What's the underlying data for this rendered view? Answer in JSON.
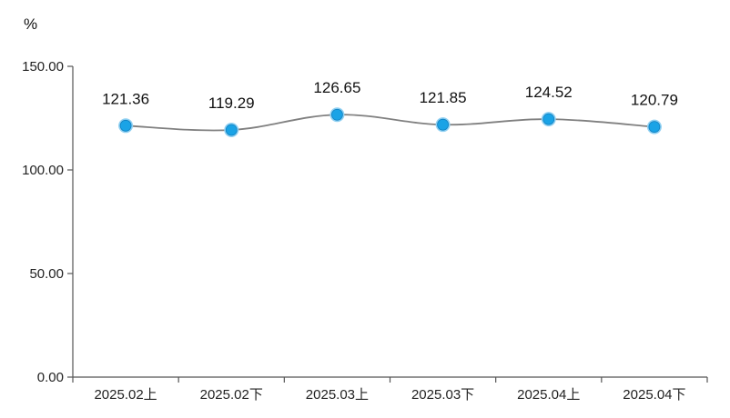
{
  "chart_data": {
    "type": "line",
    "title": "",
    "xlabel": "",
    "ylabel": "%",
    "categories": [
      "2025.02上",
      "2025.02下",
      "2025.03上",
      "2025.03下",
      "2025.04上",
      "2025.04下"
    ],
    "series": [
      {
        "values": [
          121.36,
          119.29,
          126.65,
          121.85,
          124.52,
          120.79
        ]
      }
    ],
    "data_labels": [
      "121.36",
      "119.29",
      "126.65",
      "121.85",
      "124.52",
      "120.79"
    ],
    "ylim": [
      0,
      150
    ],
    "yticks": [
      0,
      50,
      100,
      150
    ],
    "ytick_labels": [
      "0.00",
      "50.00",
      "100.00",
      "150.00"
    ],
    "grid": false,
    "legend": "none",
    "smooth": true,
    "colors": {
      "line": "#808080",
      "marker_fill": "#1aa3e6",
      "marker_ring": "#8fd0f2",
      "axis": "#555555"
    }
  }
}
